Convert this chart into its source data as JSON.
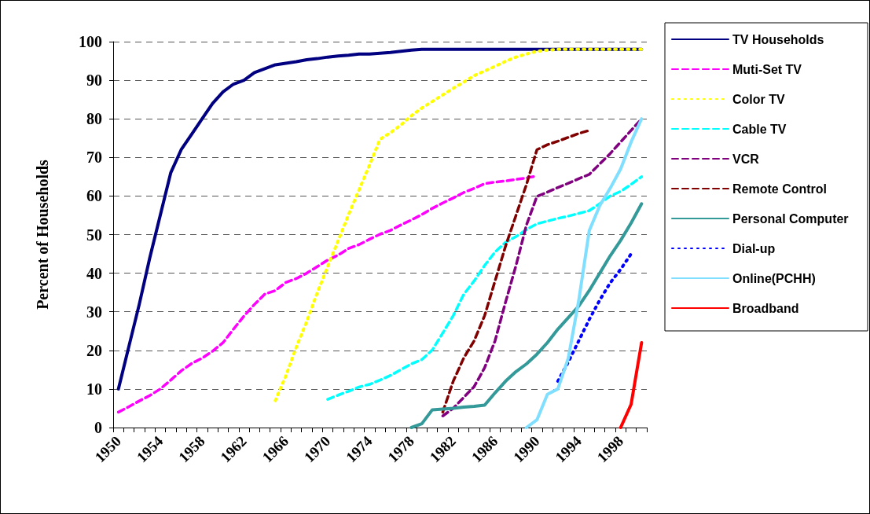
{
  "chart_data": {
    "type": "line",
    "ylabel": "Percent of Households",
    "categories": [
      "1950",
      null,
      null,
      null,
      "1954",
      null,
      null,
      null,
      "1958",
      null,
      null,
      null,
      "1962",
      null,
      null,
      null,
      "1966",
      null,
      null,
      null,
      "1970",
      null,
      null,
      null,
      "1974",
      null,
      null,
      null,
      "1978",
      null,
      null,
      null,
      "1982",
      null,
      null,
      null,
      "1986",
      null,
      null,
      null,
      "1990",
      null,
      null,
      null,
      "1994",
      null,
      null,
      null,
      "1998",
      null,
      null
    ],
    "ylim": [
      0,
      100
    ],
    "yticks": [
      0,
      10,
      20,
      30,
      40,
      50,
      60,
      70,
      80,
      90,
      100
    ],
    "grid": "y",
    "legend": "right",
    "marker": "none",
    "series": [
      {
        "name": "TV Households",
        "color": "#000080",
        "line_style": "solid",
        "values": [
          10,
          21,
          32,
          44,
          55,
          66,
          72,
          76,
          80,
          84,
          87,
          89,
          90,
          92,
          93,
          94,
          94.4,
          94.8,
          95.3,
          95.6,
          96,
          96.3,
          96.5,
          96.8,
          96.8,
          97,
          97.2,
          97.5,
          97.8,
          98,
          98,
          98,
          98,
          98,
          98,
          98,
          98,
          98,
          98,
          98,
          98,
          98,
          98,
          98,
          98,
          98,
          98,
          98,
          98,
          98,
          98
        ]
      },
      {
        "name": "Muti-Set TV",
        "color": "#ff00ff",
        "line_style": "dashed",
        "values": [
          4,
          5.4,
          6.9,
          8.3,
          10,
          12.3,
          14.7,
          16.6,
          18,
          19.8,
          22,
          25.5,
          28.9,
          31.9,
          34.6,
          35.5,
          37.6,
          38.6,
          40,
          41.7,
          43.4,
          44.7,
          46.4,
          47.4,
          48.8,
          50.1,
          51.1,
          52.5,
          53.8,
          55.2,
          56.8,
          58.2,
          59.5,
          60.9,
          62,
          63.2,
          63.6,
          63.9,
          64.3,
          64.7,
          65.2,
          null,
          null,
          null,
          null,
          null,
          null,
          null,
          null,
          null,
          null
        ]
      },
      {
        "name": "Color TV",
        "color": "#ffff00",
        "line_style": "dotted",
        "values": [
          null,
          null,
          null,
          null,
          null,
          null,
          null,
          null,
          null,
          null,
          null,
          null,
          null,
          null,
          null,
          7,
          13.4,
          20.8,
          27.5,
          34.9,
          41.7,
          48.4,
          55.2,
          61.6,
          68,
          74.7,
          76.4,
          78.4,
          80.8,
          82.8,
          84.5,
          86.2,
          87.9,
          89.5,
          91.2,
          92.4,
          93.6,
          94.9,
          96,
          96.8,
          97.5,
          97.8,
          98,
          98,
          98,
          98,
          98,
          98,
          98,
          98,
          98
        ]
      },
      {
        "name": "Cable TV",
        "color": "#00ffff",
        "line_style": "dashed",
        "values": [
          null,
          null,
          null,
          null,
          null,
          null,
          null,
          null,
          null,
          null,
          null,
          null,
          null,
          null,
          null,
          null,
          null,
          null,
          null,
          null,
          7.3,
          8.4,
          9.4,
          10.5,
          11.2,
          12.3,
          13.5,
          15,
          16.5,
          17.6,
          20.1,
          24.5,
          29,
          34.5,
          38,
          42,
          45.5,
          48,
          49.5,
          51.3,
          52.8,
          53.5,
          54.2,
          54.8,
          55.5,
          56.2,
          58,
          60,
          61.2,
          63,
          65
        ]
      },
      {
        "name": "VCR",
        "color": "#800080",
        "line_style": "dashed",
        "values": [
          null,
          null,
          null,
          null,
          null,
          null,
          null,
          null,
          null,
          null,
          null,
          null,
          null,
          null,
          null,
          null,
          null,
          null,
          null,
          null,
          null,
          null,
          null,
          null,
          null,
          null,
          null,
          null,
          null,
          null,
          null,
          3,
          5,
          7.8,
          10.6,
          15.5,
          22.5,
          32.5,
          42,
          52.5,
          59.9,
          61,
          62.2,
          63.3,
          64.5,
          65.6,
          68.3,
          71,
          74,
          77,
          80
        ]
      },
      {
        "name": "Remote Control",
        "color": "#800000",
        "line_style": "dashed",
        "values": [
          null,
          null,
          null,
          null,
          null,
          null,
          null,
          null,
          null,
          null,
          null,
          null,
          null,
          null,
          null,
          null,
          null,
          null,
          null,
          null,
          null,
          null,
          null,
          null,
          null,
          null,
          null,
          null,
          null,
          null,
          null,
          4,
          12,
          18,
          22.5,
          29,
          38,
          47,
          55,
          63,
          72,
          73.3,
          74.2,
          75.2,
          76.2,
          77,
          null,
          null,
          null,
          null,
          null
        ]
      },
      {
        "name": "Personal Computer",
        "color": "#339999",
        "line_style": "solid",
        "values": [
          null,
          null,
          null,
          null,
          null,
          null,
          null,
          null,
          null,
          null,
          null,
          null,
          null,
          null,
          null,
          null,
          null,
          null,
          null,
          null,
          null,
          null,
          null,
          null,
          null,
          null,
          null,
          null,
          0,
          1,
          4.6,
          4.8,
          5,
          5.3,
          5.5,
          5.8,
          9,
          12,
          14.5,
          16.5,
          19,
          22,
          25.5,
          28.5,
          31.5,
          35.5,
          40,
          44.5,
          48.5,
          53,
          58
        ]
      },
      {
        "name": "Dial-up",
        "color": "#0000ff",
        "line_style": "dotted",
        "values": [
          null,
          null,
          null,
          null,
          null,
          null,
          null,
          null,
          null,
          null,
          null,
          null,
          null,
          null,
          null,
          null,
          null,
          null,
          null,
          null,
          null,
          null,
          null,
          null,
          null,
          null,
          null,
          null,
          null,
          null,
          null,
          null,
          null,
          null,
          null,
          null,
          null,
          null,
          null,
          null,
          null,
          null,
          12,
          17,
          22.5,
          28,
          33,
          37.5,
          41,
          45,
          null
        ]
      },
      {
        "name": "Online(PCHH)",
        "color": "#80dfff",
        "line_style": "solid",
        "values": [
          null,
          null,
          null,
          null,
          null,
          null,
          null,
          null,
          null,
          null,
          null,
          null,
          null,
          null,
          null,
          null,
          null,
          null,
          null,
          null,
          null,
          null,
          null,
          null,
          null,
          null,
          null,
          null,
          null,
          null,
          null,
          null,
          null,
          null,
          null,
          null,
          null,
          null,
          null,
          0,
          2,
          8.6,
          10,
          18,
          33,
          51,
          57.5,
          62,
          67,
          74,
          80
        ]
      },
      {
        "name": "Broadband",
        "color": "#ff0000",
        "line_style": "solid",
        "values": [
          null,
          null,
          null,
          null,
          null,
          null,
          null,
          null,
          null,
          null,
          null,
          null,
          null,
          null,
          null,
          null,
          null,
          null,
          null,
          null,
          null,
          null,
          null,
          null,
          null,
          null,
          null,
          null,
          null,
          null,
          null,
          null,
          null,
          null,
          null,
          null,
          null,
          null,
          null,
          null,
          null,
          null,
          null,
          null,
          null,
          null,
          null,
          null,
          0,
          6,
          22
        ]
      }
    ]
  }
}
